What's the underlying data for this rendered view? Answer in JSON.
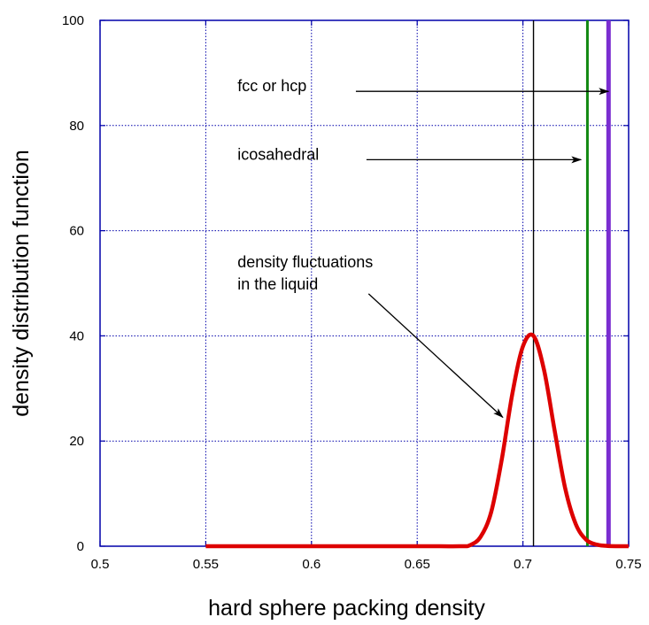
{
  "chart_data": {
    "type": "line",
    "xlabel": "hard sphere packing density",
    "ylabel": "density distribution function",
    "xlim": [
      0.5,
      0.75
    ],
    "ylim": [
      0,
      100
    ],
    "x_ticks": [
      0.5,
      0.55,
      0.6,
      0.65,
      0.7,
      0.75
    ],
    "x_tick_labels": [
      "0.5",
      "0.55",
      "0.6",
      "0.65",
      "0.7",
      "0.75"
    ],
    "y_ticks": [
      0,
      20,
      40,
      60,
      80,
      100
    ],
    "y_tick_labels": [
      "0",
      "20",
      "40",
      "60",
      "80",
      "100"
    ],
    "grid": true,
    "series": [
      {
        "color": "#dd0000",
        "x": [
          0.55,
          0.6,
          0.65,
          0.67,
          0.675,
          0.68,
          0.685,
          0.69,
          0.695,
          0.7,
          0.705,
          0.71,
          0.715,
          0.72,
          0.725,
          0.73,
          0.735,
          0.74,
          0.75
        ],
        "y": [
          0,
          0,
          0,
          0,
          0.2,
          1.8,
          6.5,
          16.5,
          29.0,
          38.0,
          40.0,
          33.5,
          22.0,
          11.0,
          4.2,
          1.2,
          0.3,
          0.05,
          0
        ]
      }
    ],
    "vertical_lines": [
      {
        "x": 0.705,
        "color": "#000000"
      },
      {
        "x": 0.7305,
        "color": "#118811"
      },
      {
        "x": 0.7405,
        "color": "#7a2dd0"
      }
    ],
    "annotations": [
      {
        "text": "fcc or hcp",
        "text_x": 0.565,
        "text_y": 86.5,
        "arrow_from": [
          0.621,
          86.5
        ],
        "arrow_to": [
          0.7405,
          86.5
        ]
      },
      {
        "text": "icosahedral",
        "text_x": 0.565,
        "text_y": 73.5,
        "arrow_from": [
          0.626,
          73.5
        ],
        "arrow_to": [
          0.7275,
          73.5
        ]
      },
      {
        "text": "density fluctuations",
        "text2": "in the liquid",
        "text_x": 0.565,
        "text_y": 53.0,
        "arrow_from": [
          0.627,
          48.0
        ],
        "arrow_to": [
          0.6905,
          24.5
        ]
      }
    ],
    "colors": {
      "axes": "#0000aa",
      "grid": "#0000aa",
      "curve": "#dd0000"
    }
  }
}
